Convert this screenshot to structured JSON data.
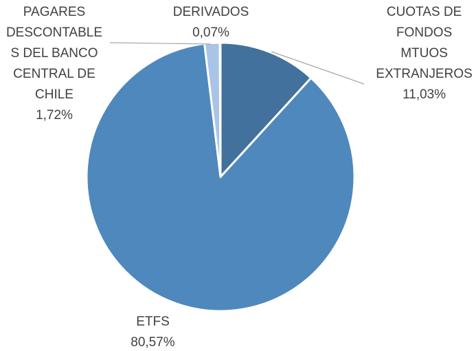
{
  "chart_data": {
    "type": "pie",
    "categories": [
      "CUOTAS DE FONDOS MTUOS EXTRANJEROS",
      "ETFS",
      "PAGARES DESCONTABLES DEL BANCO CENTRAL DE CHILE",
      "DERIVADOS"
    ],
    "values": [
      11.03,
      80.57,
      1.72,
      0.07
    ],
    "value_labels": [
      "11,03%",
      "80,57%",
      "1,72%",
      "0,07%"
    ],
    "colors": [
      "#41719c",
      "#4e88bd",
      "#a9c4e6",
      "#bcd2ee"
    ]
  }
}
